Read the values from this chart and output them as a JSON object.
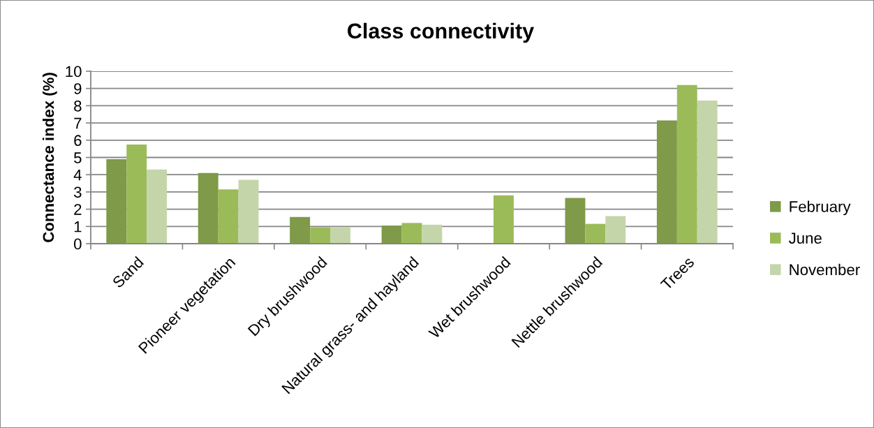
{
  "chart_data": {
    "type": "bar",
    "title": "Class connectivity",
    "ylabel": "Connectance index (%)",
    "categories": [
      "Sand",
      "Pioneer vegetation",
      "Dry brushwood",
      "Natural grass- and hayland",
      "Wet brushwood",
      "Nettle brushwood",
      "Trees"
    ],
    "series": [
      {
        "name": "February",
        "color": "#7f9a48",
        "values": [
          4.9,
          4.1,
          1.55,
          1.05,
          null,
          2.65,
          7.15
        ]
      },
      {
        "name": "June",
        "color": "#9bbb59",
        "values": [
          5.75,
          3.15,
          0.95,
          1.2,
          2.8,
          1.15,
          9.2
        ]
      },
      {
        "name": "November",
        "color": "#c4d6a9",
        "values": [
          4.3,
          3.7,
          0.95,
          1.1,
          null,
          1.6,
          8.3
        ]
      }
    ],
    "ylim": [
      0,
      10
    ],
    "yticks": [
      0,
      1,
      2,
      3,
      4,
      5,
      6,
      7,
      8,
      9,
      10
    ],
    "grid": "y",
    "legend": "right"
  }
}
